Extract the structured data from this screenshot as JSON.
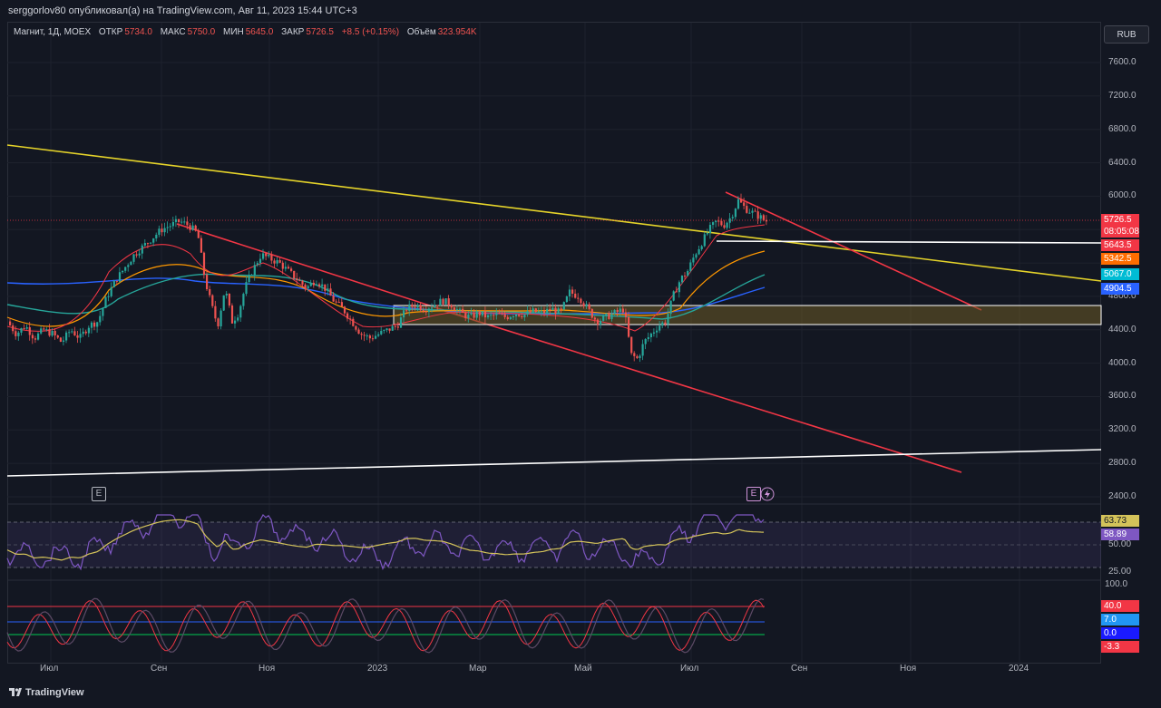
{
  "header": {
    "publisher_text": "serggorlov80 опубликовал(а) на TradingView.com, Авг 11, 2023 15:44 UTC+3"
  },
  "legend": {
    "symbol": "Магнит, 1Д, MOEX",
    "open_label": "ОТКР",
    "open_value": "5734.0",
    "high_label": "МАКС",
    "high_value": "5750.0",
    "low_label": "МИН",
    "low_value": "5645.0",
    "close_label": "ЗАКР",
    "close_value": "5726.5",
    "change_value": "+8.5 (+0.15%)",
    "volume_label": "Объём",
    "volume_value": "323.954K"
  },
  "currency_button": "RUB",
  "badges": {
    "earnings_1": "E",
    "earnings_2": "E"
  },
  "footer": {
    "logo_text": "TradingView"
  },
  "colors": {
    "background": "#131722",
    "candle_up": "#26a69a",
    "candle_down": "#ef5350",
    "trend_yellow": "#e5d32a",
    "trend_red": "#f23645",
    "zone_fill": "#6b5a25",
    "rsi_line": "#7e57c2",
    "rsi_ma": "#d4c35a"
  },
  "icons": {
    "logo": "tradingview-logo-icon",
    "lightning": "lightning-icon"
  },
  "chart_data": {
    "type": "candlestick",
    "x_ticks": [
      "Июл",
      "Сен",
      "Ноя",
      "2023",
      "Мар",
      "Май",
      "Июл",
      "Сен",
      "Ноя",
      "2024"
    ],
    "y_ticks": [
      "7600.0",
      "7200.0",
      "6800.0",
      "6400.0",
      "6000.0",
      "5600.0",
      "5200.0",
      "4800.0",
      "4400.0",
      "4000.0",
      "3600.0",
      "3200.0",
      "2800.0",
      "2400.0"
    ],
    "ylim": [
      2300,
      7800
    ],
    "grid": true,
    "price_tags": [
      {
        "value": "5726.5",
        "countdown": "08:05:08",
        "color": "#f23645"
      },
      {
        "value": "5643.5",
        "color": "#f23645"
      },
      {
        "value": "5342.5",
        "color": "#ff6d00"
      },
      {
        "value": "5067.0",
        "color": "#00bcd4"
      },
      {
        "value": "4904.5",
        "color": "#2962ff"
      }
    ],
    "price_path": [
      [
        0,
        4500
      ],
      [
        10,
        4350
      ],
      [
        20,
        4450
      ],
      [
        30,
        4300
      ],
      [
        40,
        4400
      ],
      [
        50,
        4350
      ],
      [
        60,
        4250
      ],
      [
        70,
        4400
      ],
      [
        80,
        4300
      ],
      [
        90,
        4450
      ],
      [
        100,
        4500
      ],
      [
        110,
        4800
      ],
      [
        120,
        5000
      ],
      [
        130,
        5150
      ],
      [
        140,
        5300
      ],
      [
        150,
        5400
      ],
      [
        160,
        5500
      ],
      [
        170,
        5600
      ],
      [
        180,
        5650
      ],
      [
        190,
        5700
      ],
      [
        200,
        5650
      ],
      [
        210,
        5550
      ],
      [
        218,
        5000
      ],
      [
        225,
        4700
      ],
      [
        232,
        4450
      ],
      [
        240,
        4900
      ],
      [
        248,
        4500
      ],
      [
        255,
        4600
      ],
      [
        262,
        4900
      ],
      [
        270,
        5100
      ],
      [
        280,
        5300
      ],
      [
        290,
        5250
      ],
      [
        300,
        5200
      ],
      [
        310,
        5100
      ],
      [
        320,
        5000
      ],
      [
        330,
        4900
      ],
      [
        340,
        5000
      ],
      [
        350,
        4900
      ],
      [
        360,
        4750
      ],
      [
        370,
        4650
      ],
      [
        380,
        4500
      ],
      [
        390,
        4350
      ],
      [
        400,
        4300
      ],
      [
        410,
        4350
      ],
      [
        420,
        4400
      ],
      [
        430,
        4450
      ],
      [
        440,
        4650
      ],
      [
        450,
        4700
      ],
      [
        460,
        4650
      ],
      [
        470,
        4700
      ],
      [
        480,
        4750
      ],
      [
        490,
        4700
      ],
      [
        500,
        4600
      ],
      [
        510,
        4550
      ],
      [
        520,
        4600
      ],
      [
        530,
        4550
      ],
      [
        540,
        4580
      ],
      [
        550,
        4550
      ],
      [
        560,
        4600
      ],
      [
        570,
        4580
      ],
      [
        580,
        4620
      ],
      [
        590,
        4600
      ],
      [
        600,
        4650
      ],
      [
        610,
        4600
      ],
      [
        620,
        4850
      ],
      [
        630,
        4800
      ],
      [
        640,
        4650
      ],
      [
        650,
        4500
      ],
      [
        660,
        4550
      ],
      [
        670,
        4600
      ],
      [
        680,
        4650
      ],
      [
        688,
        4100
      ],
      [
        695,
        4050
      ],
      [
        702,
        4250
      ],
      [
        710,
        4350
      ],
      [
        718,
        4450
      ],
      [
        726,
        4500
      ],
      [
        734,
        4800
      ],
      [
        742,
        5000
      ],
      [
        750,
        5100
      ],
      [
        758,
        5300
      ],
      [
        766,
        5450
      ],
      [
        774,
        5600
      ],
      [
        782,
        5700
      ],
      [
        790,
        5650
      ],
      [
        798,
        5750
      ],
      [
        806,
        5950
      ],
      [
        814,
        5850
      ],
      [
        822,
        5800
      ],
      [
        830,
        5750
      ],
      [
        836,
        5700
      ],
      [
        843,
        5726
      ]
    ],
    "indicators": {
      "rsi": {
        "value": "58.89",
        "ma_value": "63.73",
        "levels": [
          "75.00",
          "50.00",
          "25.00"
        ],
        "color": "#7e57c2",
        "ma_color": "#d4c35a"
      },
      "oscillator": {
        "values": [
          "100.0",
          "40.0",
          "7.0",
          "0.0",
          "-3.3"
        ],
        "level_colors": [
          "#f23645",
          "#2962ff",
          "#00c853",
          "#f23645"
        ]
      }
    }
  }
}
